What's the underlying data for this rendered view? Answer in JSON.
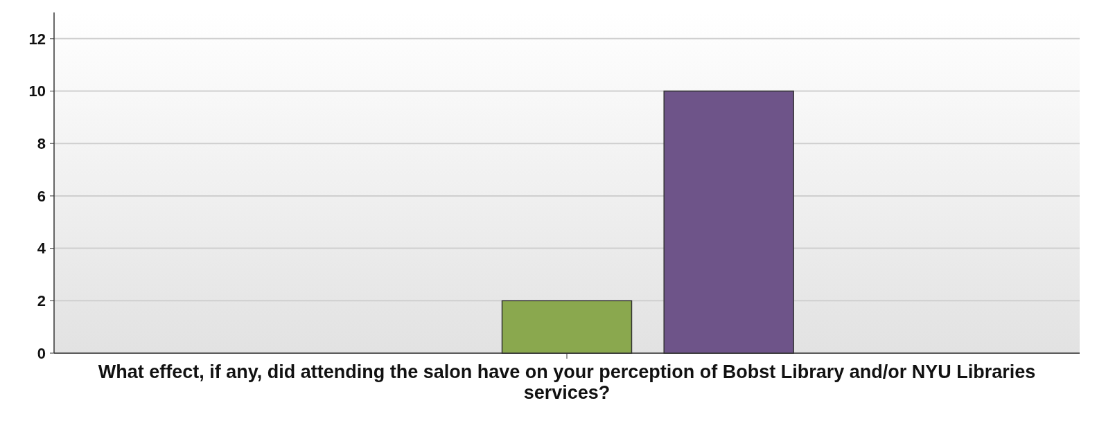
{
  "chart_data": {
    "type": "bar",
    "xlabel": "What effect, if any, did attending the salon have on your perception of Bobst Library and/or NYU Libraries services?",
    "categories": [
      null
    ],
    "series": [
      {
        "color": "#7a9ccf",
        "values": [
          0
        ]
      },
      {
        "color": "#d48a84",
        "values": [
          0
        ]
      },
      {
        "color": "#8aa84e",
        "values": [
          2
        ]
      },
      {
        "color": "#6e5489",
        "values": [
          10
        ]
      },
      {
        "color": "#7cc4d4",
        "values": [
          0
        ]
      }
    ],
    "ylim": [
      0,
      13
    ],
    "yticks": [
      0,
      2,
      4,
      6,
      8,
      10,
      12
    ],
    "grid": "y"
  }
}
